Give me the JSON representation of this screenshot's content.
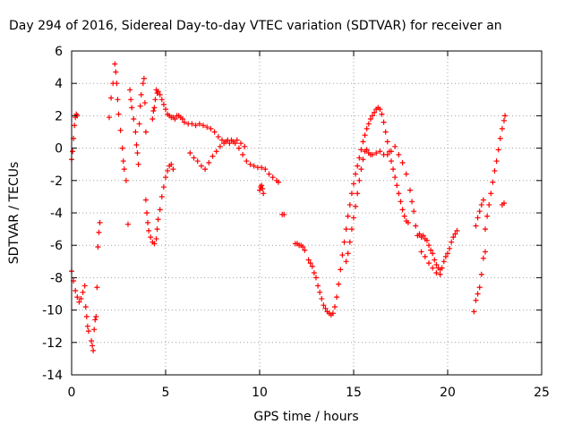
{
  "chart_data": {
    "type": "scatter",
    "title": "Day 294 of 2016, Sidereal Day-to-day VTEC variation (SDTVAR) for receiver an",
    "xlabel": "GPS time / hours",
    "ylabel": "SDTVAR / TECUs",
    "xlim": [
      0,
      25
    ],
    "ylim": [
      -14,
      6
    ],
    "xticks": [
      0,
      5,
      10,
      15,
      20,
      25
    ],
    "yticks": [
      -14,
      -12,
      -10,
      -8,
      -6,
      -4,
      -2,
      0,
      2,
      4,
      6
    ],
    "grid": true,
    "marker": "+",
    "series_color": "#ff0000",
    "series": [
      {
        "name": "SDTVAR",
        "points": [
          [
            0.0,
            -0.7
          ],
          [
            0.05,
            -0.2
          ],
          [
            0.1,
            0.6
          ],
          [
            0.15,
            1.4
          ],
          [
            0.2,
            1.9
          ],
          [
            0.25,
            2.1
          ],
          [
            0.3,
            2.0
          ],
          [
            0.0,
            -7.6
          ],
          [
            0.1,
            -8.2
          ],
          [
            0.2,
            -8.8
          ],
          [
            0.3,
            -9.2
          ],
          [
            0.4,
            -9.5
          ],
          [
            0.5,
            -9.3
          ],
          [
            0.6,
            -8.9
          ],
          [
            0.7,
            -8.5
          ],
          [
            0.75,
            -9.8
          ],
          [
            0.8,
            -10.4
          ],
          [
            0.85,
            -11.0
          ],
          [
            0.9,
            -11.3
          ],
          [
            1.05,
            -11.9
          ],
          [
            1.1,
            -12.2
          ],
          [
            1.15,
            -12.5
          ],
          [
            1.2,
            -11.2
          ],
          [
            1.25,
            -10.6
          ],
          [
            1.3,
            -10.4
          ],
          [
            1.35,
            -8.6
          ],
          [
            1.4,
            -6.1
          ],
          [
            1.45,
            -5.2
          ],
          [
            1.5,
            -4.6
          ],
          [
            2.0,
            1.9
          ],
          [
            2.1,
            3.1
          ],
          [
            2.2,
            4.0
          ],
          [
            2.3,
            5.2
          ],
          [
            2.35,
            4.7
          ],
          [
            2.4,
            4.0
          ],
          [
            2.45,
            3.0
          ],
          [
            2.5,
            2.1
          ],
          [
            2.6,
            1.1
          ],
          [
            2.7,
            0.0
          ],
          [
            2.75,
            -0.8
          ],
          [
            2.8,
            -1.3
          ],
          [
            2.9,
            -2.0
          ],
          [
            3.0,
            -4.7
          ],
          [
            3.1,
            3.6
          ],
          [
            3.15,
            3.0
          ],
          [
            3.2,
            2.5
          ],
          [
            3.3,
            1.8
          ],
          [
            3.4,
            1.0
          ],
          [
            3.45,
            0.2
          ],
          [
            3.5,
            -0.3
          ],
          [
            3.55,
            -1.0
          ],
          [
            3.6,
            1.5
          ],
          [
            3.65,
            2.6
          ],
          [
            3.7,
            3.3
          ],
          [
            3.8,
            4.0
          ],
          [
            3.85,
            4.3
          ],
          [
            3.9,
            2.8
          ],
          [
            3.95,
            1.0
          ],
          [
            3.95,
            -3.2
          ],
          [
            4.0,
            -4.0
          ],
          [
            4.05,
            -4.6
          ],
          [
            4.1,
            -5.1
          ],
          [
            4.2,
            -5.5
          ],
          [
            4.3,
            -5.8
          ],
          [
            4.4,
            -5.9
          ],
          [
            4.5,
            -5.6
          ],
          [
            4.55,
            -5.0
          ],
          [
            4.6,
            -4.4
          ],
          [
            4.7,
            -3.8
          ],
          [
            4.8,
            -3.0
          ],
          [
            4.9,
            -2.4
          ],
          [
            5.0,
            -1.8
          ],
          [
            5.1,
            -1.4
          ],
          [
            5.2,
            -1.1
          ],
          [
            5.3,
            -1.0
          ],
          [
            5.4,
            -1.3
          ],
          [
            4.3,
            1.8
          ],
          [
            4.35,
            2.3
          ],
          [
            4.4,
            2.5
          ],
          [
            4.45,
            3.0
          ],
          [
            4.5,
            3.6
          ],
          [
            4.55,
            3.4
          ],
          [
            4.6,
            3.5
          ],
          [
            4.7,
            3.3
          ],
          [
            4.8,
            3.0
          ],
          [
            4.9,
            2.7
          ],
          [
            5.0,
            2.4
          ],
          [
            5.1,
            2.1
          ],
          [
            5.2,
            2.0
          ],
          [
            5.3,
            1.9
          ],
          [
            5.4,
            1.9
          ],
          [
            5.5,
            1.8
          ],
          [
            5.6,
            2.0
          ],
          [
            5.7,
            2.0
          ],
          [
            5.8,
            1.9
          ],
          [
            5.9,
            1.8
          ],
          [
            6.0,
            1.6
          ],
          [
            6.2,
            1.5
          ],
          [
            6.4,
            1.5
          ],
          [
            6.6,
            1.4
          ],
          [
            6.8,
            1.5
          ],
          [
            7.0,
            1.4
          ],
          [
            7.2,
            1.3
          ],
          [
            7.4,
            1.2
          ],
          [
            7.6,
            1.0
          ],
          [
            7.8,
            0.7
          ],
          [
            8.0,
            0.5
          ],
          [
            8.2,
            0.4
          ],
          [
            8.4,
            0.3
          ],
          [
            8.6,
            0.4
          ],
          [
            8.8,
            0.5
          ],
          [
            9.0,
            0.3
          ],
          [
            9.2,
            0.1
          ],
          [
            6.3,
            -0.3
          ],
          [
            6.5,
            -0.6
          ],
          [
            6.7,
            -0.8
          ],
          [
            6.9,
            -1.1
          ],
          [
            7.1,
            -1.3
          ],
          [
            7.3,
            -0.9
          ],
          [
            7.5,
            -0.5
          ],
          [
            7.7,
            -0.2
          ],
          [
            7.9,
            0.1
          ],
          [
            8.1,
            0.3
          ],
          [
            8.3,
            0.5
          ],
          [
            8.5,
            0.5
          ],
          [
            8.7,
            0.3
          ],
          [
            8.9,
            0.0
          ],
          [
            9.1,
            -0.4
          ],
          [
            9.3,
            -0.8
          ],
          [
            9.5,
            -1.0
          ],
          [
            9.7,
            -1.1
          ],
          [
            9.9,
            -1.2
          ],
          [
            10.1,
            -1.2
          ],
          [
            10.3,
            -1.3
          ],
          [
            10.5,
            -1.6
          ],
          [
            10.7,
            -1.8
          ],
          [
            10.9,
            -2.0
          ],
          [
            11.0,
            -2.1
          ],
          [
            10.0,
            -2.6
          ],
          [
            10.05,
            -2.4
          ],
          [
            10.1,
            -2.3
          ],
          [
            10.15,
            -2.5
          ],
          [
            10.2,
            -2.8
          ],
          [
            11.2,
            -4.1
          ],
          [
            11.3,
            -4.1
          ],
          [
            11.9,
            -5.9
          ],
          [
            12.0,
            -5.9
          ],
          [
            12.1,
            -6.0
          ],
          [
            12.2,
            -6.0
          ],
          [
            12.3,
            -6.1
          ],
          [
            12.4,
            -6.3
          ],
          [
            12.6,
            -6.9
          ],
          [
            12.7,
            -7.1
          ],
          [
            12.8,
            -7.3
          ],
          [
            12.9,
            -7.7
          ],
          [
            13.0,
            -8.0
          ],
          [
            13.1,
            -8.5
          ],
          [
            13.2,
            -8.9
          ],
          [
            13.3,
            -9.3
          ],
          [
            13.4,
            -9.7
          ],
          [
            13.5,
            -9.9
          ],
          [
            13.6,
            -10.1
          ],
          [
            13.7,
            -10.2
          ],
          [
            13.8,
            -10.3
          ],
          [
            13.9,
            -10.2
          ],
          [
            14.0,
            -9.8
          ],
          [
            14.1,
            -9.2
          ],
          [
            14.2,
            -8.4
          ],
          [
            14.3,
            -7.5
          ],
          [
            14.4,
            -6.6
          ],
          [
            14.5,
            -5.8
          ],
          [
            14.6,
            -5.0
          ],
          [
            14.7,
            -4.2
          ],
          [
            14.8,
            -3.5
          ],
          [
            14.9,
            -2.8
          ],
          [
            15.0,
            -2.2
          ],
          [
            15.1,
            -1.6
          ],
          [
            15.2,
            -1.1
          ],
          [
            15.3,
            -0.6
          ],
          [
            15.4,
            -0.1
          ],
          [
            15.5,
            0.4
          ],
          [
            15.6,
            0.8
          ],
          [
            15.7,
            1.2
          ],
          [
            15.8,
            1.5
          ],
          [
            15.9,
            1.8
          ],
          [
            16.0,
            2.0
          ],
          [
            16.1,
            2.2
          ],
          [
            16.2,
            2.4
          ],
          [
            16.3,
            2.5
          ],
          [
            16.4,
            2.4
          ],
          [
            16.5,
            2.1
          ],
          [
            16.6,
            1.6
          ],
          [
            16.7,
            1.0
          ],
          [
            16.8,
            0.4
          ],
          [
            16.9,
            -0.2
          ],
          [
            17.0,
            -0.8
          ],
          [
            17.1,
            -1.3
          ],
          [
            17.2,
            -1.8
          ],
          [
            17.3,
            -2.3
          ],
          [
            17.4,
            -2.8
          ],
          [
            17.5,
            -3.3
          ],
          [
            17.6,
            -3.8
          ],
          [
            17.7,
            -4.2
          ],
          [
            17.8,
            -4.5
          ],
          [
            17.9,
            -4.6
          ],
          [
            14.6,
            -7.0
          ],
          [
            14.7,
            -6.5
          ],
          [
            14.8,
            -5.8
          ],
          [
            14.9,
            -5.0
          ],
          [
            15.0,
            -4.3
          ],
          [
            15.1,
            -3.6
          ],
          [
            15.2,
            -2.8
          ],
          [
            15.3,
            -2.0
          ],
          [
            15.4,
            -1.3
          ],
          [
            15.5,
            -0.7
          ],
          [
            15.6,
            -0.2
          ],
          [
            15.7,
            -0.1
          ],
          [
            15.8,
            -0.3
          ],
          [
            15.9,
            -0.4
          ],
          [
            16.0,
            -0.4
          ],
          [
            16.2,
            -0.3
          ],
          [
            16.4,
            -0.2
          ],
          [
            16.6,
            -0.4
          ],
          [
            16.8,
            -0.4
          ],
          [
            17.0,
            -0.2
          ],
          [
            17.2,
            0.1
          ],
          [
            17.4,
            -0.4
          ],
          [
            17.6,
            -0.9
          ],
          [
            17.8,
            -1.6
          ],
          [
            18.0,
            -2.6
          ],
          [
            18.1,
            -3.3
          ],
          [
            18.2,
            -3.9
          ],
          [
            18.3,
            -4.8
          ],
          [
            18.4,
            -5.4
          ],
          [
            18.5,
            -5.3
          ],
          [
            18.6,
            -5.5
          ],
          [
            18.7,
            -5.4
          ],
          [
            18.8,
            -5.6
          ],
          [
            18.9,
            -5.7
          ],
          [
            19.0,
            -6.0
          ],
          [
            19.1,
            -6.3
          ],
          [
            19.2,
            -6.5
          ],
          [
            19.3,
            -6.9
          ],
          [
            19.4,
            -7.2
          ],
          [
            19.5,
            -7.4
          ],
          [
            19.6,
            -7.5
          ],
          [
            19.7,
            -7.4
          ],
          [
            19.8,
            -7.0
          ],
          [
            19.9,
            -6.7
          ],
          [
            20.0,
            -6.5
          ],
          [
            20.1,
            -6.2
          ],
          [
            20.2,
            -5.8
          ],
          [
            20.3,
            -5.5
          ],
          [
            20.4,
            -5.3
          ],
          [
            20.5,
            -5.1
          ],
          [
            18.6,
            -6.4
          ],
          [
            18.8,
            -6.7
          ],
          [
            19.0,
            -7.1
          ],
          [
            19.2,
            -7.4
          ],
          [
            19.4,
            -7.7
          ],
          [
            19.6,
            -7.8
          ],
          [
            21.4,
            -10.1
          ],
          [
            21.5,
            -9.4
          ],
          [
            21.6,
            -9.0
          ],
          [
            21.7,
            -8.6
          ],
          [
            21.8,
            -7.8
          ],
          [
            21.9,
            -6.8
          ],
          [
            22.0,
            -6.4
          ],
          [
            21.5,
            -4.8
          ],
          [
            21.6,
            -4.3
          ],
          [
            21.7,
            -3.9
          ],
          [
            21.8,
            -3.5
          ],
          [
            21.9,
            -3.2
          ],
          [
            22.0,
            -5.0
          ],
          [
            22.1,
            -4.2
          ],
          [
            22.2,
            -3.5
          ],
          [
            22.3,
            -2.8
          ],
          [
            22.4,
            -2.1
          ],
          [
            22.5,
            -1.4
          ],
          [
            22.6,
            -0.8
          ],
          [
            22.7,
            -0.1
          ],
          [
            22.8,
            0.6
          ],
          [
            22.9,
            1.2
          ],
          [
            23.0,
            1.7
          ],
          [
            23.05,
            2.0
          ],
          [
            22.9,
            -3.5
          ],
          [
            23.0,
            -3.4
          ]
        ]
      }
    ]
  }
}
